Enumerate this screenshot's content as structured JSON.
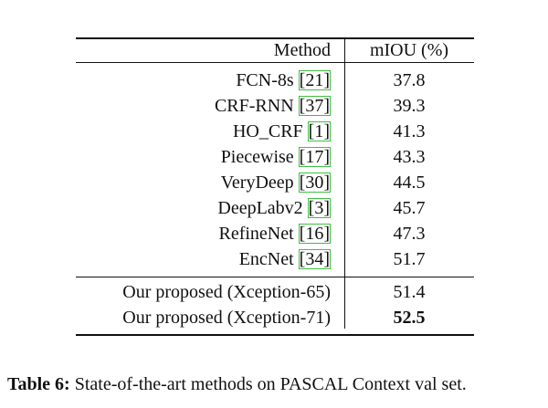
{
  "table": {
    "header": [
      "Method",
      "mIOU (%)"
    ],
    "groups": [
      [
        {
          "method": "FCN-8s",
          "ref": "[21]",
          "miou": 37.8
        },
        {
          "method": "CRF-RNN",
          "ref": "[37]",
          "miou": 39.3
        },
        {
          "method": "HO_CRF",
          "ref": "[1]",
          "miou": 41.3
        },
        {
          "method": "Piecewise",
          "ref": "[17]",
          "miou": 43.3
        },
        {
          "method": "VeryDeep",
          "ref": "[30]",
          "miou": 44.5
        },
        {
          "method": "DeepLabv2",
          "ref": "[3]",
          "miou": 45.7
        },
        {
          "method": "RefineNet",
          "ref": "[16]",
          "miou": 47.3
        },
        {
          "method": "EncNet",
          "ref": "[34]",
          "miou": 51.7
        }
      ],
      [
        {
          "method": "Our proposed (Xception-65)",
          "miou": 51.4
        },
        {
          "method": "Our proposed (Xception-71)",
          "miou": 52.5,
          "bold": true
        }
      ]
    ]
  },
  "caption": {
    "label": "Table 6:",
    "text": "State-of-the-art methods on PASCAL Context val set."
  }
}
